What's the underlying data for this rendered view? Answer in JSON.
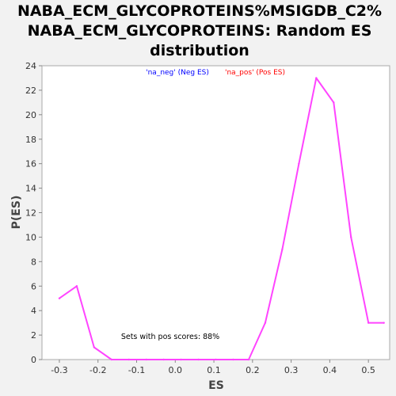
{
  "chart_data": {
    "type": "line",
    "title_lines": [
      "NABA_ECM_GLYCOPROTEINS%MSIGDB_C2%",
      "NABA_ECM_GLYCOPROTEINS: Random ES",
      "distribution"
    ],
    "xlabel": "ES",
    "ylabel": "P(ES)",
    "xlim": [
      -0.345,
      0.555
    ],
    "ylim": [
      0,
      24
    ],
    "xticks": [
      -0.3,
      -0.2,
      -0.1,
      0.0,
      0.1,
      0.2,
      0.3,
      0.4,
      0.5
    ],
    "xtick_labels": [
      "-0.3",
      "-0.2",
      "-0.1",
      "0.0",
      "0.1",
      "0.2",
      "0.3",
      "0.4",
      "0.5"
    ],
    "yticks": [
      0,
      2,
      4,
      6,
      8,
      10,
      12,
      14,
      16,
      18,
      20,
      22,
      24
    ],
    "ytick_labels": [
      "0",
      "2",
      "4",
      "6",
      "8",
      "10",
      "12",
      "14",
      "16",
      "18",
      "20",
      "22",
      "24"
    ],
    "grid": false,
    "legend": [
      {
        "label": "'na_neg' (Neg ES)",
        "color": "#0000ff"
      },
      {
        "label": "'na_pos' (Pos ES)",
        "color": "#ff0000"
      }
    ],
    "legend_placement": "top-center",
    "annotation": "Sets with pos scores: 88%",
    "series": [
      {
        "color": "#ff44ff",
        "x": [
          -0.3,
          -0.255,
          -0.21,
          -0.165,
          -0.12,
          -0.075,
          -0.03,
          0.015,
          0.06,
          0.105,
          0.15,
          0.19,
          0.233,
          0.277,
          0.32,
          0.365,
          0.41,
          0.455,
          0.5,
          0.54
        ],
        "y": [
          5,
          6,
          1,
          0,
          0,
          0,
          0,
          0,
          0,
          0,
          0,
          0,
          3,
          9,
          16,
          23,
          21,
          10,
          3,
          3
        ]
      }
    ]
  },
  "colors": {
    "background": "#f2f2f2",
    "plot_background": "#ffffff",
    "line": "#ff44ff",
    "axis": "#888888"
  }
}
